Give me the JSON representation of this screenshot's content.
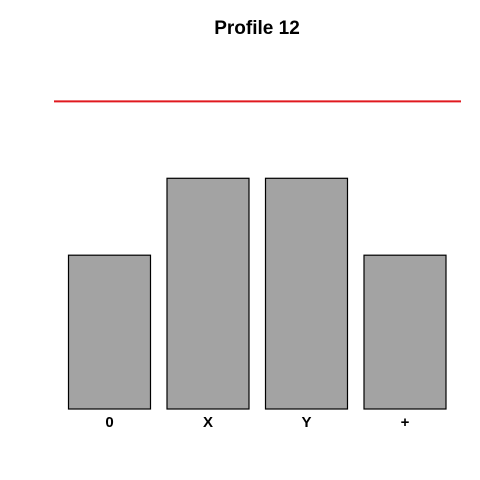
{
  "chart_data": {
    "type": "bar",
    "title": "Profile 12",
    "categories": [
      "0",
      "X",
      "Y",
      "+"
    ],
    "values": [
      2,
      3,
      3,
      2
    ],
    "ylim": [
      0,
      4.2
    ],
    "reference_line": {
      "value": 4.0,
      "color": "#e0191f"
    },
    "bar_color": "#a3a3a3",
    "bar_edge_color": "#000000",
    "grid": false,
    "legend": "none"
  }
}
